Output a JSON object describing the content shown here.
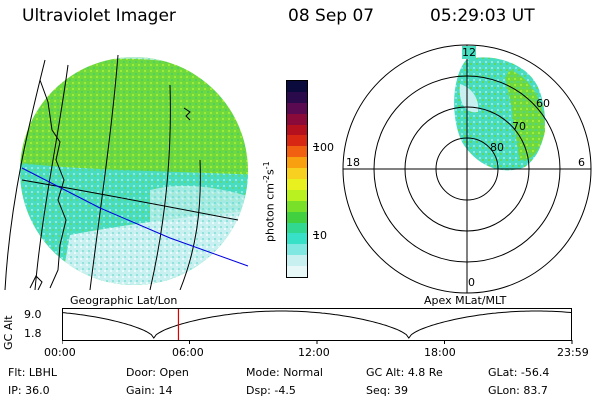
{
  "header": {
    "instrument": "Ultraviolet Imager",
    "date": "08 Sep 07",
    "time": "05:29:03 UT"
  },
  "left_panel": {
    "label": "Geographic Lat/Lon"
  },
  "colorbar": {
    "label": "photon cm⁻²s⁻¹",
    "label_base": "photon cm",
    "label_exp1": "-2",
    "label_mid": "s",
    "label_exp2": "-1",
    "ticks": [
      "100",
      "10"
    ],
    "colors_top_to_bottom": [
      "#0a0a3c",
      "#2a0a4a",
      "#5a0a50",
      "#8a0a3a",
      "#b4101e",
      "#d82814",
      "#f06010",
      "#f8a010",
      "#f8d020",
      "#e8f020",
      "#b8f020",
      "#78e028",
      "#40d040",
      "#30d890",
      "#38e0c8",
      "#80e8e0",
      "#c8f0f0",
      "#e8f8f8"
    ]
  },
  "polar": {
    "label": "Apex MLat/MLT",
    "mlt_labels": {
      "top": "12",
      "left": "18",
      "right": "6",
      "bottom": "0"
    },
    "lat_labels": [
      "60",
      "70",
      "80"
    ]
  },
  "alt_plot": {
    "ylabel": "GC Alt",
    "yticks": [
      "9.0",
      "1.8"
    ],
    "xticks": [
      "00:00",
      "06:00",
      "12:00",
      "18:00",
      "23:59"
    ],
    "current_time_hours": 5.48
  },
  "footer": {
    "row1": [
      {
        "k": "Flt:",
        "v": "LBHL"
      },
      {
        "k": "Door:",
        "v": "Open"
      },
      {
        "k": "Mode:",
        "v": "Normal"
      },
      {
        "k": "GC Alt:",
        "v": "4.8 Re"
      },
      {
        "k": "GLat:",
        "v": "-56.4"
      }
    ],
    "row2": [
      {
        "k": "IP:",
        "v": "36.0"
      },
      {
        "k": "Gain:",
        "v": "14"
      },
      {
        "k": "Dsp:",
        "v": "-4.5"
      },
      {
        "k": "Seq:",
        "v": "39"
      },
      {
        "k": "GLon:",
        "v": "83.7"
      }
    ]
  },
  "colors": {
    "aurora_green": "#7ee040",
    "aurora_cyan": "#40e0c0",
    "aurora_pale": "#d0f4f0",
    "marker_red": "#e00000",
    "track_blue": "#0000e0"
  }
}
